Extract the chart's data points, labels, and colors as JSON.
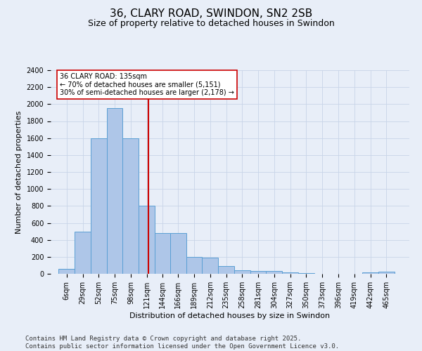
{
  "title_line1": "36, CLARY ROAD, SWINDON, SN2 2SB",
  "title_line2": "Size of property relative to detached houses in Swindon",
  "xlabel": "Distribution of detached houses by size in Swindon",
  "ylabel": "Number of detached properties",
  "footer_line1": "Contains HM Land Registry data © Crown copyright and database right 2025.",
  "footer_line2": "Contains public sector information licensed under the Open Government Licence v3.0.",
  "annotation_line1": "36 CLARY ROAD: 135sqm",
  "annotation_line2": "← 70% of detached houses are smaller (5,151)",
  "annotation_line3": "30% of semi-detached houses are larger (2,178) →",
  "bar_edges": [
    6,
    29,
    52,
    75,
    98,
    121,
    144,
    166,
    189,
    212,
    235,
    258,
    281,
    304,
    327,
    350,
    373,
    396,
    419,
    442,
    465,
    488
  ],
  "bar_heights": [
    55,
    500,
    1600,
    1950,
    1600,
    800,
    480,
    480,
    200,
    190,
    90,
    45,
    35,
    30,
    15,
    5,
    0,
    0,
    0,
    20,
    25
  ],
  "bar_labels": [
    "6sqm",
    "29sqm",
    "52sqm",
    "75sqm",
    "98sqm",
    "121sqm",
    "144sqm",
    "166sqm",
    "189sqm",
    "212sqm",
    "235sqm",
    "258sqm",
    "281sqm",
    "304sqm",
    "327sqm",
    "350sqm",
    "373sqm",
    "396sqm",
    "419sqm",
    "442sqm",
    "465sqm"
  ],
  "bar_color": "#aec6e8",
  "bar_edge_color": "#5a9fd4",
  "vline_x": 135,
  "vline_color": "#cc0000",
  "ylim": [
    0,
    2400
  ],
  "yticks": [
    0,
    200,
    400,
    600,
    800,
    1000,
    1200,
    1400,
    1600,
    1800,
    2000,
    2200,
    2400
  ],
  "grid_color": "#c8d4e8",
  "background_color": "#e8eef8",
  "plot_bg_color": "#e8eef8",
  "title_fontsize": 11,
  "subtitle_fontsize": 9,
  "label_fontsize": 8,
  "tick_fontsize": 7,
  "footer_fontsize": 6.5
}
